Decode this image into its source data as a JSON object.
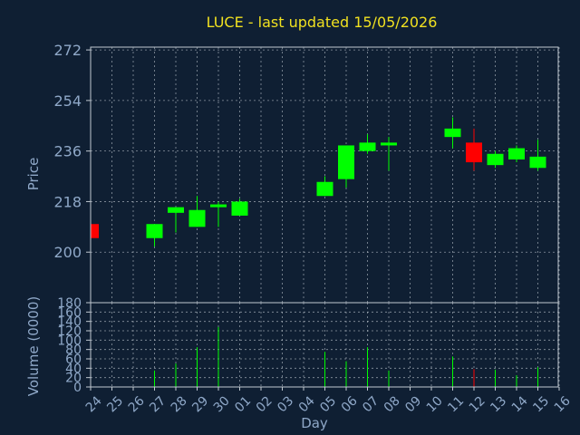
{
  "colors": {
    "background": "#0f1f33",
    "up": "#00ff00",
    "down": "#ff0000",
    "title": "#f0e020",
    "text": "#8fa8c8",
    "grid": "#c0c8d0",
    "frame": "#c0c8d0"
  },
  "chart_data": {
    "type": "candlestick",
    "title": "LUCE - last updated 15/05/2026",
    "xlabel": "Day",
    "ylabel": "Price",
    "volume_label": "Volume (0000)",
    "grid": true,
    "categories": [
      "24",
      "25",
      "26",
      "27",
      "28",
      "29",
      "30",
      "01",
      "02",
      "03",
      "04",
      "05",
      "06",
      "07",
      "08",
      "09",
      "10",
      "11",
      "12",
      "13",
      "14",
      "15",
      "16"
    ],
    "price_ticks": [
      200,
      218,
      236,
      254,
      272
    ],
    "price_ylim": [
      182,
      273
    ],
    "volume_ticks": [
      0,
      20,
      40,
      60,
      80,
      100,
      120,
      140,
      160,
      180
    ],
    "volume_ylim": [
      0,
      180
    ],
    "candles": [
      {
        "day": "24",
        "open": 210,
        "high": 210,
        "low": 205,
        "close": 205,
        "volume": 0
      },
      {
        "day": "27",
        "open": 205,
        "high": 210,
        "low": 202,
        "close": 210,
        "volume": 35
      },
      {
        "day": "28",
        "open": 214,
        "high": 216,
        "low": 207,
        "close": 216,
        "volume": 50
      },
      {
        "day": "29",
        "open": 209,
        "high": 220,
        "low": 209,
        "close": 215,
        "volume": 85
      },
      {
        "day": "30",
        "open": 216,
        "high": 218,
        "low": 209,
        "close": 217,
        "volume": 128
      },
      {
        "day": "01",
        "open": 213,
        "high": 219,
        "low": 213,
        "close": 218,
        "volume": 0
      },
      {
        "day": "05",
        "open": 220,
        "high": 227,
        "low": 220,
        "close": 225,
        "volume": 75
      },
      {
        "day": "06",
        "open": 226,
        "high": 238,
        "low": 223,
        "close": 238,
        "volume": 55
      },
      {
        "day": "07",
        "open": 236,
        "high": 242,
        "low": 235,
        "close": 239,
        "volume": 85
      },
      {
        "day": "08",
        "open": 238,
        "high": 241,
        "low": 229,
        "close": 239,
        "volume": 35
      },
      {
        "day": "11",
        "open": 241,
        "high": 248,
        "low": 237,
        "close": 244,
        "volume": 65
      },
      {
        "day": "12",
        "open": 239,
        "high": 244,
        "low": 229,
        "close": 232,
        "volume": 38
      },
      {
        "day": "13",
        "open": 231,
        "high": 236,
        "low": 230,
        "close": 235,
        "volume": 37
      },
      {
        "day": "14",
        "open": 233,
        "high": 238,
        "low": 232,
        "close": 237,
        "volume": 25
      },
      {
        "day": "15",
        "open": 230,
        "high": 240,
        "low": 229,
        "close": 234,
        "volume": 42
      }
    ]
  }
}
